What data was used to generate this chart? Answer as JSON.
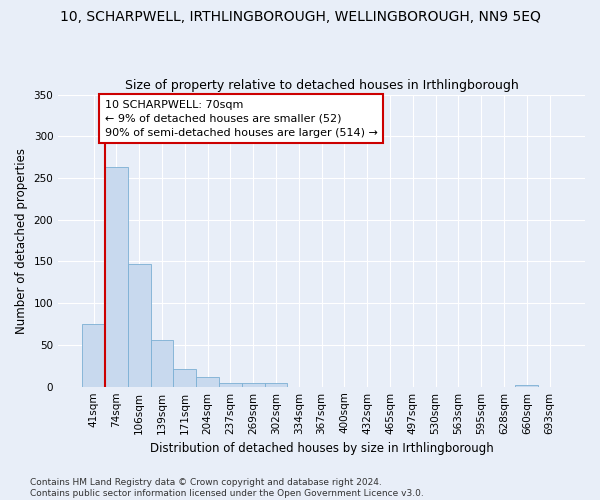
{
  "title": "10, SCHARPWELL, IRTHLINGBOROUGH, WELLINGBOROUGH, NN9 5EQ",
  "subtitle": "Size of property relative to detached houses in Irthlingborough",
  "xlabel": "Distribution of detached houses by size in Irthlingborough",
  "ylabel": "Number of detached properties",
  "categories": [
    "41sqm",
    "74sqm",
    "106sqm",
    "139sqm",
    "171sqm",
    "204sqm",
    "237sqm",
    "269sqm",
    "302sqm",
    "334sqm",
    "367sqm",
    "400sqm",
    "432sqm",
    "465sqm",
    "497sqm",
    "530sqm",
    "563sqm",
    "595sqm",
    "628sqm",
    "660sqm",
    "693sqm"
  ],
  "values": [
    75,
    263,
    147,
    56,
    21,
    11,
    4,
    4,
    4,
    0,
    0,
    0,
    0,
    0,
    0,
    0,
    0,
    0,
    0,
    2,
    0
  ],
  "bar_color": "#c8d9ee",
  "bar_edge_color": "#7bafd4",
  "highlight_line_color": "#cc0000",
  "annotation_text": "10 SCHARPWELL: 70sqm\n← 9% of detached houses are smaller (52)\n90% of semi-detached houses are larger (514) →",
  "annotation_box_color": "#ffffff",
  "annotation_box_edge": "#cc0000",
  "ylim": [
    0,
    350
  ],
  "yticks": [
    0,
    50,
    100,
    150,
    200,
    250,
    300,
    350
  ],
  "footer": "Contains HM Land Registry data © Crown copyright and database right 2024.\nContains public sector information licensed under the Open Government Licence v3.0.",
  "bg_color": "#e8eef8",
  "plot_bg_color": "#e8eef8",
  "grid_color": "#ffffff",
  "title_fontsize": 10,
  "subtitle_fontsize": 9,
  "axis_label_fontsize": 8.5,
  "tick_fontsize": 7.5,
  "annotation_fontsize": 8,
  "footer_fontsize": 6.5
}
